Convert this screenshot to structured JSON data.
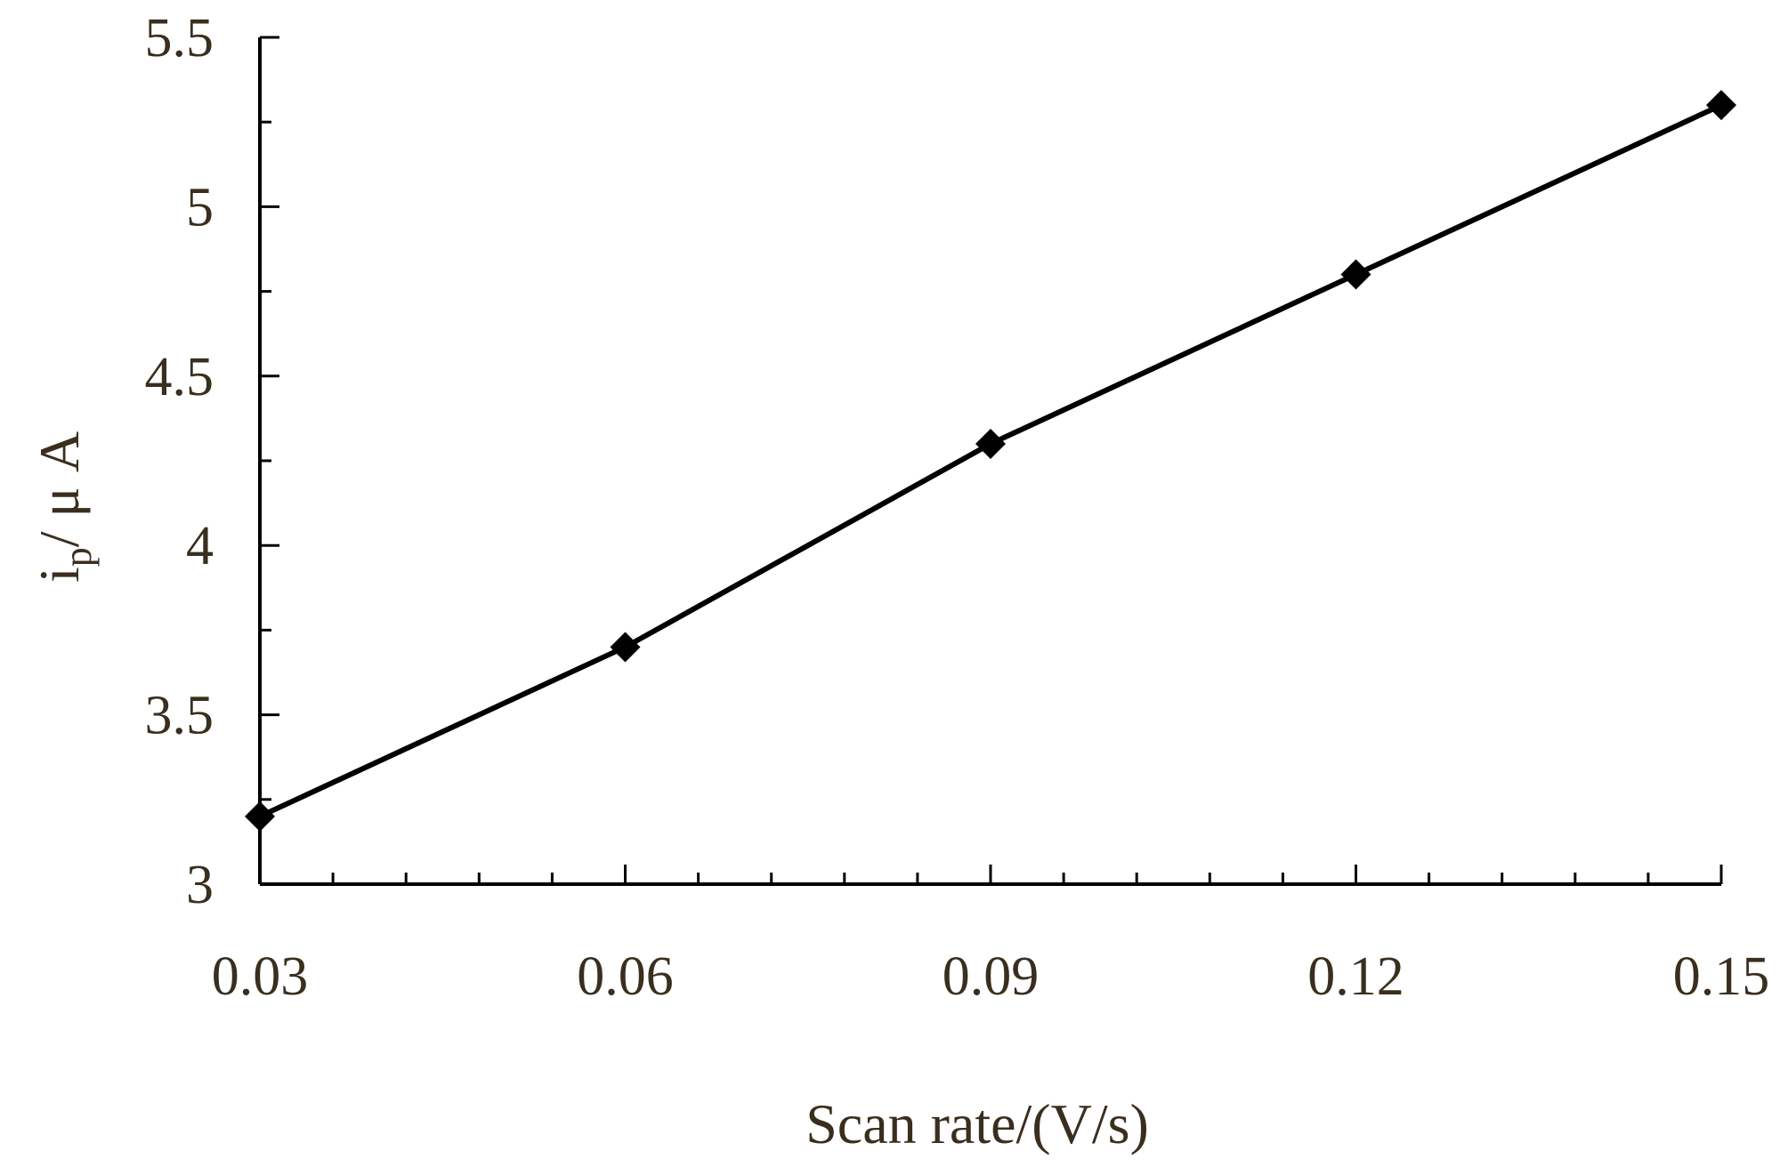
{
  "chart_data": {
    "type": "line",
    "x": [
      0.03,
      0.06,
      0.09,
      0.12,
      0.15
    ],
    "series": [
      {
        "values": [
          3.2,
          3.7,
          4.3,
          4.8,
          5.3
        ]
      }
    ],
    "xlim": [
      0.03,
      0.15
    ],
    "ylim": [
      3,
      5.5
    ],
    "x_tick_labels": [
      "0.03",
      "0.06",
      "0.09",
      "0.12",
      "0.15"
    ],
    "y_tick_labels": [
      "3",
      "3.5",
      "4",
      "4.5",
      "5",
      "5.5"
    ],
    "xlabel": "Scan rate/(V/s)",
    "ylabel_main": "i",
    "ylabel_sub": "p",
    "ylabel_rest": "/ μ A",
    "marker": "diamond",
    "grid": false,
    "colors": {
      "line": "#000000",
      "marker": "#000000",
      "text": "#3a2e1e"
    }
  }
}
